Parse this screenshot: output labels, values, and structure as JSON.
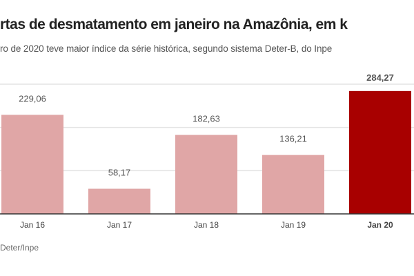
{
  "title": "rtas de desmatamento em janeiro na Amazônia, em k",
  "subtitle": "ro de 2020 teve maior índice da série histórica, segundo sistema Deter-B, do Inpe",
  "source": "Deter/Inpe",
  "chart_data": {
    "type": "bar",
    "categories": [
      "Jan 16",
      "Jan 17",
      "Jan 18",
      "Jan 19",
      "Jan 20"
    ],
    "values": [
      229.06,
      58.17,
      182.63,
      136.21,
      284.27
    ],
    "data_labels": [
      "229,06",
      "58,17",
      "182,63",
      "136,21",
      "284,27"
    ],
    "highlight_index": 4,
    "colors": {
      "normal": "#e0a6a6",
      "highlight": "#a80000",
      "grid": "#e3e3e3",
      "axis": "#333333"
    },
    "ylim": [
      0,
      300
    ],
    "gridlines": [
      100,
      200,
      300
    ],
    "grid": true
  }
}
